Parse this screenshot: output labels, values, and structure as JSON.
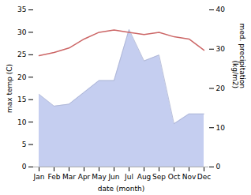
{
  "chart_data": {
    "type": "line",
    "xlabel": "date (month)",
    "ylabel": "max temp (C)",
    "y2label": "med. precipitation\n(kg/m2)",
    "categories": [
      "Jan",
      "Feb",
      "Mar",
      "Apr",
      "May",
      "Jun",
      "Jul",
      "Aug",
      "Sep",
      "Oct",
      "Nov",
      "Dec"
    ],
    "series": [
      {
        "type": "area",
        "color": "#c5cef0",
        "axis": "y2",
        "values": [
          18.5,
          15.5,
          16.0,
          19.0,
          22.0,
          22.0,
          35.0,
          27.0,
          28.5,
          11.0,
          13.5,
          13.5
        ]
      },
      {
        "type": "line",
        "color": "#cc6666",
        "values": [
          24.8,
          25.5,
          26.5,
          28.5,
          30.0,
          30.5,
          30.0,
          29.5,
          30.0,
          29.0,
          28.5,
          26.0
        ]
      }
    ],
    "ylim": [
      0,
      35
    ],
    "yticks": [
      0,
      5,
      10,
      15,
      20,
      25,
      30,
      35
    ],
    "y2lim": [
      0,
      40
    ],
    "y2ticks": [
      0,
      10,
      20,
      30,
      40
    ],
    "grid": false
  }
}
